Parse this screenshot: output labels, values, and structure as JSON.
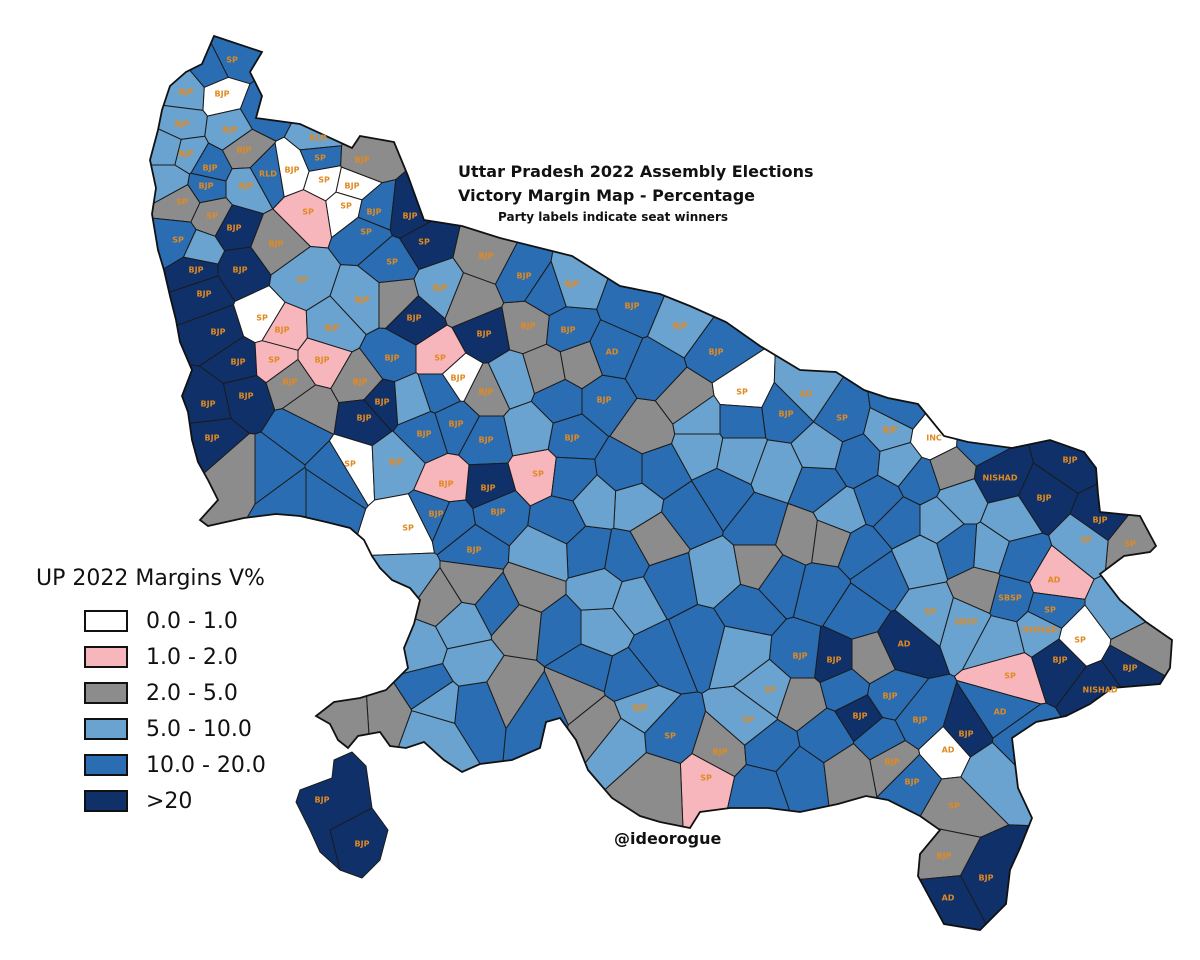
{
  "title": {
    "line1": "Uttar Pradesh 2022 Assembly Elections",
    "line2": "Victory Margin Map - Percentage",
    "note": "Party labels indicate seat winners"
  },
  "legend": {
    "title": "UP 2022 Margins V%",
    "items": [
      {
        "label": "0.0 - 1.0",
        "color": "#ffffff"
      },
      {
        "label": "1.0 - 2.0",
        "color": "#f7b6bc"
      },
      {
        "label": "2.0 - 5.0",
        "color": "#8c8c8c"
      },
      {
        "label": "5.0 - 10.0",
        "color": "#6aa3cf"
      },
      {
        "label": "10.0 - 20.0",
        "color": "#2a6db3"
      },
      {
        "label": ">20",
        "color": "#10306a"
      }
    ]
  },
  "credit": "@ideorogue",
  "label_color": "#e08a22",
  "seats": [
    {
      "party": "SP",
      "bin": 4
    },
    {
      "party": "BJP",
      "bin": 3
    },
    {
      "party": "BJP",
      "bin": 0
    },
    {
      "party": "BJP",
      "bin": 3
    },
    {
      "party": "BJP",
      "bin": 3
    },
    {
      "party": "BJP",
      "bin": 3
    },
    {
      "party": "BJP",
      "bin": 4
    },
    {
      "party": "BJP",
      "bin": 2
    },
    {
      "party": "BJP",
      "bin": 4
    },
    {
      "party": "SP",
      "bin": 2
    },
    {
      "party": "SP",
      "bin": 4
    },
    {
      "party": "SP",
      "bin": 2
    },
    {
      "party": "BJP",
      "bin": 3
    },
    {
      "party": "RLD",
      "bin": 4
    },
    {
      "party": "BJP",
      "bin": 0
    },
    {
      "party": "SP",
      "bin": 0
    },
    {
      "party": "BJP",
      "bin": 0
    },
    {
      "party": "RLD",
      "bin": 3
    },
    {
      "party": "SP",
      "bin": 4
    },
    {
      "party": "BJP",
      "bin": 2
    },
    {
      "party": "SP",
      "bin": 0
    },
    {
      "party": "BJP",
      "bin": 4
    },
    {
      "party": "BJP",
      "bin": 5
    },
    {
      "party": "SP",
      "bin": 5
    },
    {
      "party": "SP",
      "bin": 4
    },
    {
      "party": "SP",
      "bin": 4
    },
    {
      "party": "BJP",
      "bin": 5
    },
    {
      "party": "BJP",
      "bin": 5
    },
    {
      "party": "BJP",
      "bin": 5
    },
    {
      "party": "BJP",
      "bin": 2
    },
    {
      "party": "SP",
      "bin": 1
    },
    {
      "party": "BJP",
      "bin": 5
    },
    {
      "party": "BJP",
      "bin": 5
    },
    {
      "party": "SP",
      "bin": 0
    },
    {
      "party": "SP",
      "bin": 3
    },
    {
      "party": "BJP",
      "bin": 1
    },
    {
      "party": "BJP",
      "bin": 5
    },
    {
      "party": "BJP",
      "bin": 5
    },
    {
      "party": "BJP",
      "bin": 5
    },
    {
      "party": "BJP",
      "bin": 5
    },
    {
      "party": "BJP",
      "bin": 2
    },
    {
      "party": "SP",
      "bin": 1
    },
    {
      "party": "BJP",
      "bin": 1
    },
    {
      "party": "BJP",
      "bin": 2
    },
    {
      "party": "BJP",
      "bin": 3
    },
    {
      "party": "BJP",
      "bin": 3
    },
    {
      "party": "BJP",
      "bin": 4
    },
    {
      "party": "BJP",
      "bin": 5
    },
    {
      "party": "BJP",
      "bin": 5
    },
    {
      "party": "SP",
      "bin": 0
    },
    {
      "party": "BJP",
      "bin": 3
    },
    {
      "party": "BJP",
      "bin": 4
    },
    {
      "party": "BJP",
      "bin": 4
    },
    {
      "party": "BJP",
      "bin": 4
    },
    {
      "party": "BJP",
      "bin": 5
    },
    {
      "party": "BJP",
      "bin": 1
    },
    {
      "party": "SP",
      "bin": 0
    },
    {
      "party": "BJP",
      "bin": 4
    },
    {
      "party": "BJP",
      "bin": 4
    },
    {
      "party": "BJP",
      "bin": 4
    },
    {
      "party": "SP",
      "bin": 1
    },
    {
      "party": "BJP",
      "bin": 4
    },
    {
      "party": "BJP",
      "bin": 4
    },
    {
      "party": "AD",
      "bin": 4
    },
    {
      "party": "BJP",
      "bin": 4
    },
    {
      "party": "BJP",
      "bin": 2
    },
    {
      "party": "BJP",
      "bin": 5
    },
    {
      "party": "BJP",
      "bin": 2
    },
    {
      "party": "BJP",
      "bin": 0
    },
    {
      "party": "SP",
      "bin": 1
    },
    {
      "party": "BJP",
      "bin": 5
    },
    {
      "party": "BJP",
      "bin": 3
    },
    {
      "party": "BJP",
      "bin": 2
    },
    {
      "party": "BJP",
      "bin": 4
    },
    {
      "party": "BJP",
      "bin": 3
    },
    {
      "party": "BJP",
      "bin": 4
    },
    {
      "party": "BJP",
      "bin": 3
    },
    {
      "party": "BJP",
      "bin": 4
    },
    {
      "party": "SP",
      "bin": 0
    },
    {
      "party": "BJP",
      "bin": 4
    },
    {
      "party": "AD",
      "bin": 3
    },
    {
      "party": "SP",
      "bin": 4
    },
    {
      "party": "BJP",
      "bin": 3
    },
    {
      "party": "INC",
      "bin": 0
    },
    {
      "party": "NISHAD",
      "bin": 5
    },
    {
      "party": "BJP",
      "bin": 5
    },
    {
      "party": "BJP",
      "bin": 5
    },
    {
      "party": "BJP",
      "bin": 5
    },
    {
      "party": "SP",
      "bin": 2
    },
    {
      "party": "SP",
      "bin": 3
    },
    {
      "party": "AD",
      "bin": 1
    },
    {
      "party": "SP",
      "bin": 4
    },
    {
      "party": "SP",
      "bin": 0
    },
    {
      "party": "NISHAD",
      "bin": 3
    },
    {
      "party": "SBSP",
      "bin": 4
    },
    {
      "party": "SBSP",
      "bin": 3
    },
    {
      "party": "SP",
      "bin": 3
    },
    {
      "party": "AD",
      "bin": 5
    },
    {
      "party": "SP",
      "bin": 1
    },
    {
      "party": "BJP",
      "bin": 5
    },
    {
      "party": "NISHAD",
      "bin": 5
    },
    {
      "party": "BJP",
      "bin": 5
    },
    {
      "party": "AD",
      "bin": 4
    },
    {
      "party": "AD",
      "bin": 0
    },
    {
      "party": "BJP",
      "bin": 4
    },
    {
      "party": "BJP",
      "bin": 2
    },
    {
      "party": "SP",
      "bin": 2
    },
    {
      "party": "BJP",
      "bin": 2
    },
    {
      "party": "BJP",
      "bin": 5
    },
    {
      "party": "AD",
      "bin": 5
    },
    {
      "party": "BJP",
      "bin": 5
    },
    {
      "party": "BJP",
      "bin": 4
    },
    {
      "party": "BJP",
      "bin": 4
    },
    {
      "party": "BJP",
      "bin": 5
    },
    {
      "party": "BJP",
      "bin": 5
    },
    {
      "party": "BJP",
      "bin": 4
    },
    {
      "party": "SP",
      "bin": 3
    },
    {
      "party": "SP",
      "bin": 3
    },
    {
      "party": "BJP",
      "bin": 2
    },
    {
      "party": "SP",
      "bin": 1
    },
    {
      "party": "SP",
      "bin": 4
    },
    {
      "party": "BJP",
      "bin": 3
    }
  ]
}
